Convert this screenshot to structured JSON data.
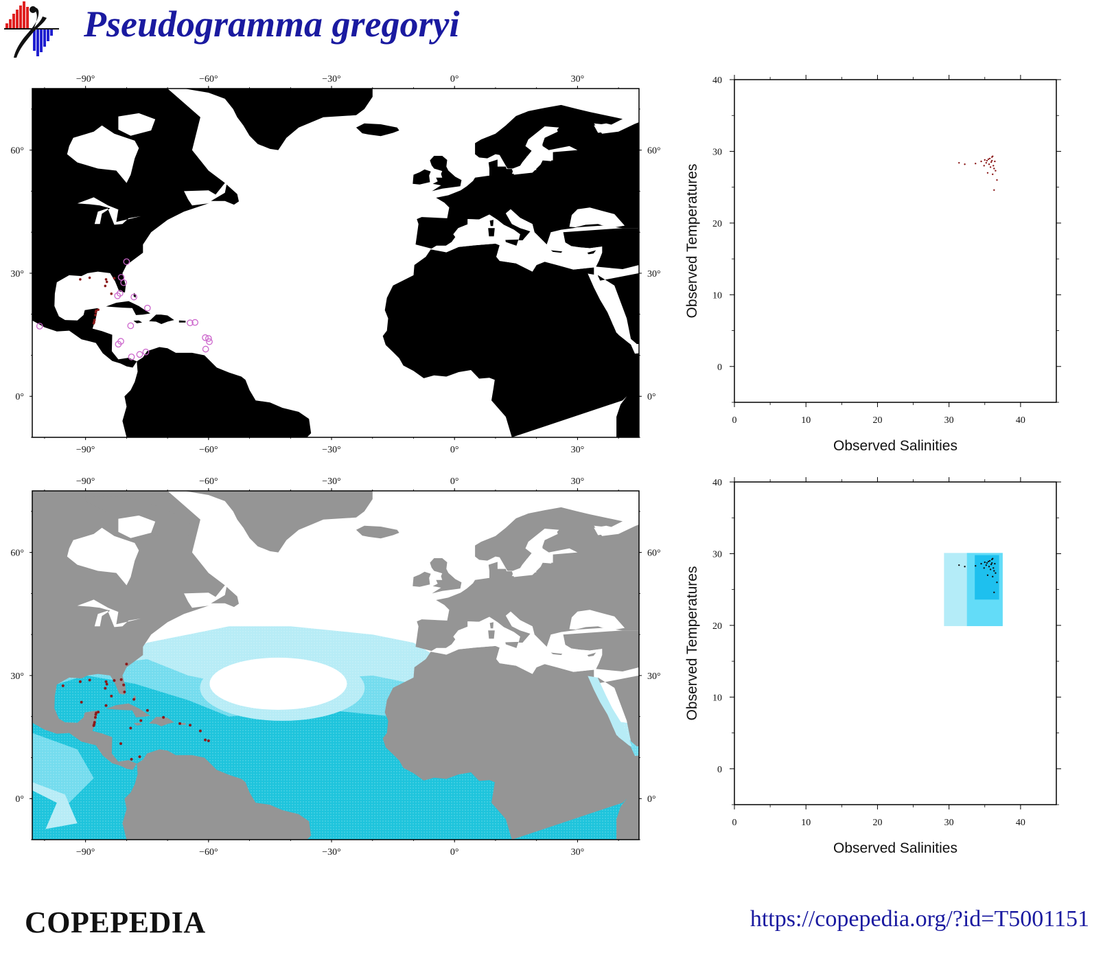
{
  "header": {
    "title": "Pseudogramma gregoryi"
  },
  "footer": {
    "brand": "COPEPEDIA",
    "url": "https://copepedia.org/?id=T5001151"
  },
  "colors": {
    "title": "#1a1aa0",
    "land_top": "#000000",
    "land_bottom": "#959595",
    "ocean_light": "#b7ecf6",
    "ocean_mid": "#74dcee",
    "ocean_deep": "#1ec4dc",
    "occurrence": "#8b1a1a",
    "record_circle": "#cc66cc",
    "envelope_outer": "#b4ecf8",
    "envelope_mid": "#63dcf8",
    "envelope_inner": "#1ec0ee"
  },
  "maps": {
    "lon_ticks": [
      "−90°",
      "−60°",
      "−30°",
      "0°",
      "30°"
    ],
    "lat_ticks": [
      "0°",
      "30°",
      "60°"
    ],
    "lon_values": [
      -90,
      -60,
      -30,
      0,
      30
    ],
    "lat_values": [
      0,
      30,
      60
    ],
    "lon_range": [
      -103,
      45
    ],
    "lat_range": [
      -10,
      75
    ]
  },
  "chart_data": [
    {
      "type": "scatter",
      "panel": "top-right",
      "xlabel": "Observed Salinities",
      "ylabel": "Observed Temperatures",
      "xlim": [
        0,
        45
      ],
      "ylim": [
        -5,
        40
      ],
      "x_ticks": [
        "0",
        "10",
        "20",
        "30",
        "40"
      ],
      "y_ticks": [
        "0",
        "10",
        "20",
        "30",
        "40"
      ],
      "x_tick_values": [
        0,
        10,
        20,
        30,
        40
      ],
      "y_tick_values": [
        0,
        10,
        20,
        30,
        40
      ],
      "points": [
        [
          31.4,
          28.4
        ],
        [
          32.2,
          28.2
        ],
        [
          33.7,
          28.3
        ],
        [
          34.5,
          28.6
        ],
        [
          35.0,
          28.8
        ],
        [
          35.2,
          28.4
        ],
        [
          35.5,
          28.9
        ],
        [
          35.7,
          29.0
        ],
        [
          35.9,
          28.5
        ],
        [
          36.0,
          29.2
        ],
        [
          36.1,
          29.3
        ],
        [
          36.2,
          28.0
        ],
        [
          36.3,
          27.6
        ],
        [
          36.4,
          28.6
        ],
        [
          35.8,
          27.8
        ],
        [
          35.6,
          28.2
        ],
        [
          36.5,
          27.3
        ],
        [
          35.4,
          27.0
        ],
        [
          36.1,
          26.8
        ],
        [
          36.3,
          24.6
        ],
        [
          36.7,
          26.0
        ],
        [
          34.9,
          28.0
        ],
        [
          35.3,
          28.7
        ],
        [
          36.0,
          28.7
        ]
      ]
    },
    {
      "type": "scatter",
      "panel": "bottom-right",
      "xlabel": "Observed Salinities",
      "ylabel": "Observed Temperatures",
      "xlim": [
        0,
        45
      ],
      "ylim": [
        -5,
        40
      ],
      "x_ticks": [
        "0",
        "10",
        "20",
        "30",
        "40"
      ],
      "y_ticks": [
        "0",
        "10",
        "20",
        "30",
        "40"
      ],
      "x_tick_values": [
        0,
        10,
        20,
        30,
        40
      ],
      "y_tick_values": [
        0,
        10,
        20,
        30,
        40
      ],
      "envelopes": [
        {
          "level": "outer",
          "x": [
            29.3,
            37.5
          ],
          "y": [
            19.9,
            30.1
          ]
        },
        {
          "level": "mid",
          "x": [
            32.5,
            37.5
          ],
          "y": [
            19.9,
            30.1
          ]
        },
        {
          "level": "inner",
          "x": [
            33.6,
            37.0
          ],
          "y": [
            23.6,
            29.8
          ]
        }
      ],
      "points": [
        [
          31.4,
          28.4
        ],
        [
          32.2,
          28.2
        ],
        [
          33.7,
          28.3
        ],
        [
          34.5,
          28.6
        ],
        [
          35.0,
          28.8
        ],
        [
          35.2,
          28.4
        ],
        [
          35.5,
          28.9
        ],
        [
          35.7,
          29.0
        ],
        [
          35.9,
          28.5
        ],
        [
          36.0,
          29.2
        ],
        [
          36.1,
          29.3
        ],
        [
          36.2,
          28.0
        ],
        [
          36.3,
          27.6
        ],
        [
          36.4,
          28.6
        ],
        [
          35.8,
          27.8
        ],
        [
          35.6,
          28.2
        ],
        [
          36.5,
          27.3
        ],
        [
          35.4,
          27.0
        ],
        [
          36.1,
          26.8
        ],
        [
          36.3,
          24.6
        ],
        [
          36.7,
          26.0
        ],
        [
          34.9,
          28.0
        ],
        [
          35.3,
          28.7
        ],
        [
          36.0,
          28.7
        ]
      ]
    },
    {
      "type": "scatter",
      "panel": "top-left-map",
      "occurrences_lonlat": [
        [
          -87.5,
          20.5
        ],
        [
          -87.6,
          19.8
        ],
        [
          -87.8,
          18.6
        ],
        [
          -87.4,
          20.9
        ],
        [
          -87.9,
          18.1
        ],
        [
          -88.0,
          17.8
        ],
        [
          -86.9,
          21.1
        ],
        [
          -91.3,
          28.5
        ],
        [
          -89.0,
          28.9
        ],
        [
          -85.0,
          28.5
        ],
        [
          -84.8,
          27.9
        ],
        [
          -83.0,
          28.8
        ],
        [
          -85.2,
          26.9
        ],
        [
          -83.7,
          25.0
        ]
      ],
      "records_lonlat": [
        [
          -80.0,
          32.8
        ],
        [
          -81.3,
          29.0
        ],
        [
          -80.7,
          27.7
        ],
        [
          -81.6,
          25.1
        ],
        [
          -78.2,
          24.2
        ],
        [
          -74.9,
          21.5
        ],
        [
          -64.5,
          17.9
        ],
        [
          -63.3,
          18.0
        ],
        [
          -60.8,
          14.3
        ],
        [
          -60.0,
          14.1
        ],
        [
          -59.8,
          13.3
        ],
        [
          -60.7,
          11.5
        ],
        [
          -79.0,
          17.2
        ],
        [
          -81.4,
          13.4
        ],
        [
          -82.0,
          12.7
        ],
        [
          -78.8,
          9.6
        ],
        [
          -76.8,
          10.2
        ],
        [
          -75.3,
          10.8
        ],
        [
          -101.2,
          17.1
        ],
        [
          -82.2,
          24.5
        ]
      ]
    },
    {
      "type": "scatter",
      "panel": "bottom-left-map",
      "occurrences_lonlat": [
        [
          -87.5,
          20.5
        ],
        [
          -87.6,
          19.8
        ],
        [
          -87.8,
          18.6
        ],
        [
          -87.4,
          20.9
        ],
        [
          -87.9,
          18.1
        ],
        [
          -88.0,
          17.8
        ],
        [
          -86.9,
          21.1
        ],
        [
          -91.3,
          28.5
        ],
        [
          -89.0,
          28.9
        ],
        [
          -85.0,
          28.5
        ],
        [
          -84.8,
          27.9
        ],
        [
          -83.0,
          28.8
        ],
        [
          -85.2,
          26.9
        ],
        [
          -83.7,
          25.0
        ],
        [
          -80.0,
          32.8
        ],
        [
          -81.3,
          29.0
        ],
        [
          -80.7,
          27.7
        ],
        [
          -78.2,
          24.2
        ],
        [
          -74.9,
          21.5
        ],
        [
          -64.5,
          17.9
        ],
        [
          -60.8,
          14.3
        ],
        [
          -60.0,
          14.1
        ],
        [
          -79.0,
          17.2
        ],
        [
          -81.4,
          13.4
        ],
        [
          -78.8,
          9.6
        ],
        [
          -76.8,
          10.2
        ],
        [
          -85.0,
          22.7
        ],
        [
          -80.5,
          26.0
        ],
        [
          -76.5,
          19.0
        ],
        [
          -71.0,
          19.8
        ],
        [
          -67.0,
          18.3
        ],
        [
          -62.0,
          16.5
        ],
        [
          -91.0,
          23.5
        ],
        [
          -95.5,
          27.5
        ]
      ]
    }
  ]
}
